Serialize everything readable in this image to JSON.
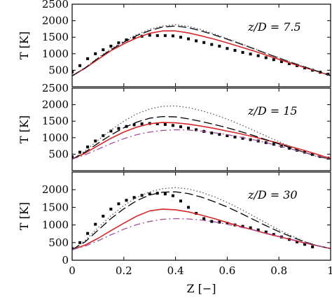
{
  "chart_data": [
    {
      "type": "scatter",
      "panel": "top",
      "annotation": "z/D = 7.5",
      "ylabel": "T [K]",
      "xlim": [
        0,
        1
      ],
      "ylim": [
        0,
        2500
      ],
      "yticks": [
        {
          "v": 500,
          "label": "500"
        },
        {
          "v": 1000,
          "label": "1000"
        },
        {
          "v": 1500,
          "label": "1500"
        },
        {
          "v": 2000,
          "label": "2000"
        },
        {
          "v": 2500,
          "label": "2500"
        }
      ],
      "series": [
        {
          "style": "scatter",
          "color": "#000000",
          "x": [
            0.0,
            0.03,
            0.06,
            0.09,
            0.12,
            0.15,
            0.18,
            0.21,
            0.24,
            0.27,
            0.3,
            0.33,
            0.36,
            0.39,
            0.42,
            0.45,
            0.48,
            0.51,
            0.54,
            0.57,
            0.6,
            0.63,
            0.66,
            0.69,
            0.72,
            0.75,
            0.78,
            0.81,
            0.84,
            0.87,
            0.9,
            0.93,
            0.96,
            0.99
          ],
          "y": [
            450,
            640,
            850,
            1000,
            1120,
            1230,
            1330,
            1420,
            1480,
            1530,
            1560,
            1550,
            1550,
            1540,
            1500,
            1450,
            1390,
            1340,
            1280,
            1230,
            1160,
            1100,
            1040,
            990,
            940,
            880,
            820,
            760,
            700,
            640,
            570,
            500,
            440,
            380
          ]
        },
        {
          "style": "solid",
          "color": "#d62728",
          "x": [
            0,
            0.05,
            0.1,
            0.15,
            0.2,
            0.25,
            0.3,
            0.35,
            0.4,
            0.45,
            0.5,
            0.55,
            0.6,
            0.65,
            0.7,
            0.75,
            0.8,
            0.85,
            0.9,
            0.95,
            1.0
          ],
          "y": [
            330,
            560,
            830,
            1090,
            1300,
            1480,
            1620,
            1690,
            1690,
            1630,
            1540,
            1440,
            1330,
            1210,
            1090,
            960,
            830,
            700,
            580,
            460,
            340
          ]
        },
        {
          "style": "dashed",
          "color": "#000000",
          "x": [
            0,
            0.05,
            0.1,
            0.15,
            0.2,
            0.25,
            0.3,
            0.35,
            0.4,
            0.45,
            0.5,
            0.55,
            0.6,
            0.65,
            0.7,
            0.75,
            0.8,
            0.85,
            0.9,
            0.95,
            1.0
          ],
          "y": [
            330,
            570,
            860,
            1120,
            1350,
            1550,
            1700,
            1810,
            1840,
            1790,
            1690,
            1570,
            1440,
            1300,
            1160,
            1010,
            870,
            730,
            600,
            470,
            340
          ]
        },
        {
          "style": "dotted",
          "color": "#555555",
          "x": [
            0,
            0.05,
            0.1,
            0.15,
            0.2,
            0.25,
            0.3,
            0.35,
            0.4,
            0.45,
            0.5,
            0.55,
            0.6,
            0.65,
            0.7,
            0.75,
            0.8,
            0.85,
            0.9,
            0.95,
            1.0
          ],
          "y": [
            330,
            580,
            880,
            1150,
            1380,
            1580,
            1740,
            1840,
            1880,
            1830,
            1730,
            1600,
            1460,
            1320,
            1170,
            1020,
            880,
            740,
            600,
            470,
            340
          ]
        }
      ]
    },
    {
      "type": "scatter",
      "panel": "middle",
      "annotation": "z/D = 15",
      "ylabel": "T [K]",
      "xlim": [
        0,
        1
      ],
      "ylim": [
        0,
        2500
      ],
      "yticks": [
        {
          "v": 500,
          "label": "500"
        },
        {
          "v": 1000,
          "label": "1000"
        },
        {
          "v": 1500,
          "label": "1500"
        },
        {
          "v": 2000,
          "label": "2000"
        },
        {
          "v": 2500,
          "label": "2500"
        }
      ],
      "series": [
        {
          "style": "scatter",
          "color": "#000000",
          "x": [
            0.0,
            0.03,
            0.06,
            0.09,
            0.12,
            0.15,
            0.18,
            0.21,
            0.24,
            0.27,
            0.3,
            0.33,
            0.36,
            0.39,
            0.42,
            0.45,
            0.48,
            0.51,
            0.54,
            0.57,
            0.6,
            0.63,
            0.66,
            0.69,
            0.72,
            0.75,
            0.78,
            0.81,
            0.84,
            0.87,
            0.9,
            0.93,
            0.96,
            0.99
          ],
          "y": [
            420,
            560,
            720,
            900,
            1060,
            1200,
            1280,
            1340,
            1390,
            1420,
            1430,
            1420,
            1400,
            1370,
            1330,
            1290,
            1240,
            1190,
            1140,
            1100,
            1060,
            1020,
            980,
            940,
            900,
            850,
            800,
            740,
            680,
            620,
            560,
            490,
            430,
            380
          ]
        },
        {
          "style": "solid",
          "color": "#d62728",
          "x": [
            0,
            0.05,
            0.1,
            0.15,
            0.2,
            0.25,
            0.3,
            0.35,
            0.4,
            0.45,
            0.5,
            0.55,
            0.6,
            0.65,
            0.7,
            0.75,
            0.8,
            0.85,
            0.9,
            0.95,
            1.0
          ],
          "y": [
            350,
            530,
            760,
            980,
            1170,
            1320,
            1420,
            1460,
            1450,
            1410,
            1350,
            1280,
            1200,
            1120,
            1030,
            930,
            830,
            720,
            610,
            490,
            370
          ]
        },
        {
          "style": "dashed",
          "color": "#000000",
          "x": [
            0,
            0.05,
            0.1,
            0.15,
            0.2,
            0.25,
            0.3,
            0.35,
            0.4,
            0.45,
            0.5,
            0.55,
            0.6,
            0.65,
            0.7,
            0.75,
            0.8,
            0.85,
            0.9,
            0.95,
            1.0
          ],
          "y": [
            350,
            560,
            830,
            1080,
            1300,
            1470,
            1590,
            1640,
            1630,
            1570,
            1490,
            1400,
            1300,
            1190,
            1070,
            940,
            810,
            680,
            550,
            430,
            350
          ]
        },
        {
          "style": "dotted",
          "color": "#555555",
          "x": [
            0,
            0.05,
            0.1,
            0.15,
            0.2,
            0.25,
            0.3,
            0.35,
            0.4,
            0.45,
            0.5,
            0.55,
            0.6,
            0.65,
            0.7,
            0.75,
            0.8,
            0.85,
            0.9,
            0.95,
            1.0
          ],
          "y": [
            350,
            600,
            920,
            1230,
            1500,
            1720,
            1870,
            1950,
            1960,
            1910,
            1820,
            1700,
            1560,
            1400,
            1230,
            1050,
            880,
            710,
            550,
            420,
            350
          ]
        },
        {
          "style": "dashdot",
          "color": "#a04e9a",
          "x": [
            0,
            0.05,
            0.1,
            0.15,
            0.2,
            0.25,
            0.3,
            0.35,
            0.4,
            0.45,
            0.5,
            0.55,
            0.6,
            0.65,
            0.7,
            0.75,
            0.8,
            0.85,
            0.9,
            0.95,
            1.0
          ],
          "y": [
            350,
            480,
            650,
            820,
            970,
            1090,
            1170,
            1220,
            1240,
            1230,
            1200,
            1150,
            1090,
            1020,
            940,
            850,
            750,
            650,
            550,
            450,
            350
          ]
        }
      ]
    },
    {
      "type": "scatter",
      "panel": "bottom",
      "annotation": "z/D = 30",
      "ylabel": "T [K]",
      "xlabel": "Z [−]",
      "xlim": [
        0,
        1
      ],
      "ylim": [
        0,
        2500
      ],
      "xticks": [
        {
          "v": 0,
          "label": "0"
        },
        {
          "v": 0.2,
          "label": "0.2"
        },
        {
          "v": 0.4,
          "label": "0.4"
        },
        {
          "v": 0.6,
          "label": "0.6"
        },
        {
          "v": 0.8,
          "label": "0.8"
        },
        {
          "v": 1,
          "label": "1"
        }
      ],
      "yticks": [
        {
          "v": 0,
          "label": "0"
        },
        {
          "v": 500,
          "label": "500"
        },
        {
          "v": 1000,
          "label": "1000"
        },
        {
          "v": 1500,
          "label": "1500"
        },
        {
          "v": 2000,
          "label": "2000"
        }
      ],
      "series": [
        {
          "style": "scatter",
          "color": "#000000",
          "x": [
            0.0,
            0.03,
            0.06,
            0.09,
            0.12,
            0.15,
            0.18,
            0.21,
            0.24,
            0.27,
            0.3,
            0.33,
            0.36,
            0.39,
            0.42,
            0.45,
            0.48,
            0.51,
            0.54,
            0.57,
            0.6,
            0.63,
            0.66,
            0.69,
            0.72,
            0.75,
            0.78,
            0.81,
            0.84,
            0.87,
            0.9,
            0.93
          ],
          "y": [
            330,
            500,
            760,
            1020,
            1250,
            1450,
            1600,
            1700,
            1780,
            1840,
            1880,
            1900,
            1880,
            1830,
            1680,
            1500,
            1330,
            1180,
            1100,
            1080,
            1050,
            1000,
            960,
            920,
            860,
            800,
            730,
            660,
            590,
            520,
            450,
            380
          ]
        },
        {
          "style": "solid",
          "color": "#d62728",
          "x": [
            0,
            0.05,
            0.1,
            0.15,
            0.2,
            0.25,
            0.3,
            0.35,
            0.4,
            0.45,
            0.5,
            0.55,
            0.6,
            0.65,
            0.7,
            0.75,
            0.8,
            0.85,
            0.9,
            0.95,
            1.0
          ],
          "y": [
            300,
            430,
            620,
            840,
            1050,
            1250,
            1400,
            1450,
            1430,
            1370,
            1280,
            1180,
            1070,
            960,
            860,
            760,
            670,
            580,
            490,
            410,
            330
          ]
        },
        {
          "style": "dashed",
          "color": "#000000",
          "x": [
            0,
            0.05,
            0.1,
            0.15,
            0.2,
            0.25,
            0.3,
            0.35,
            0.4,
            0.45,
            0.5,
            0.55,
            0.6,
            0.65,
            0.7,
            0.75,
            0.8,
            0.85,
            0.9,
            0.95,
            1.0
          ],
          "y": [
            300,
            520,
            850,
            1180,
            1460,
            1690,
            1850,
            1930,
            1940,
            1890,
            1790,
            1660,
            1510,
            1340,
            1160,
            980,
            810,
            660,
            520,
            410,
            330
          ]
        },
        {
          "style": "dotted",
          "color": "#555555",
          "x": [
            0,
            0.05,
            0.1,
            0.15,
            0.2,
            0.25,
            0.3,
            0.35,
            0.4,
            0.45,
            0.5,
            0.55,
            0.6,
            0.65,
            0.7,
            0.75,
            0.8,
            0.85,
            0.9,
            0.95,
            1.0
          ],
          "y": [
            300,
            560,
            920,
            1260,
            1550,
            1780,
            1940,
            2030,
            2060,
            2020,
            1930,
            1800,
            1640,
            1460,
            1260,
            1060,
            860,
            690,
            530,
            410,
            330
          ]
        },
        {
          "style": "dashdot",
          "color": "#a04e9a",
          "x": [
            0,
            0.05,
            0.1,
            0.15,
            0.2,
            0.25,
            0.3,
            0.35,
            0.4,
            0.45,
            0.5,
            0.55,
            0.6,
            0.65,
            0.7,
            0.75,
            0.8,
            0.85,
            0.9,
            0.95,
            1.0
          ],
          "y": [
            300,
            400,
            550,
            720,
            880,
            1010,
            1100,
            1160,
            1180,
            1170,
            1140,
            1090,
            1020,
            940,
            860,
            770,
            680,
            590,
            500,
            410,
            330
          ]
        }
      ]
    }
  ]
}
